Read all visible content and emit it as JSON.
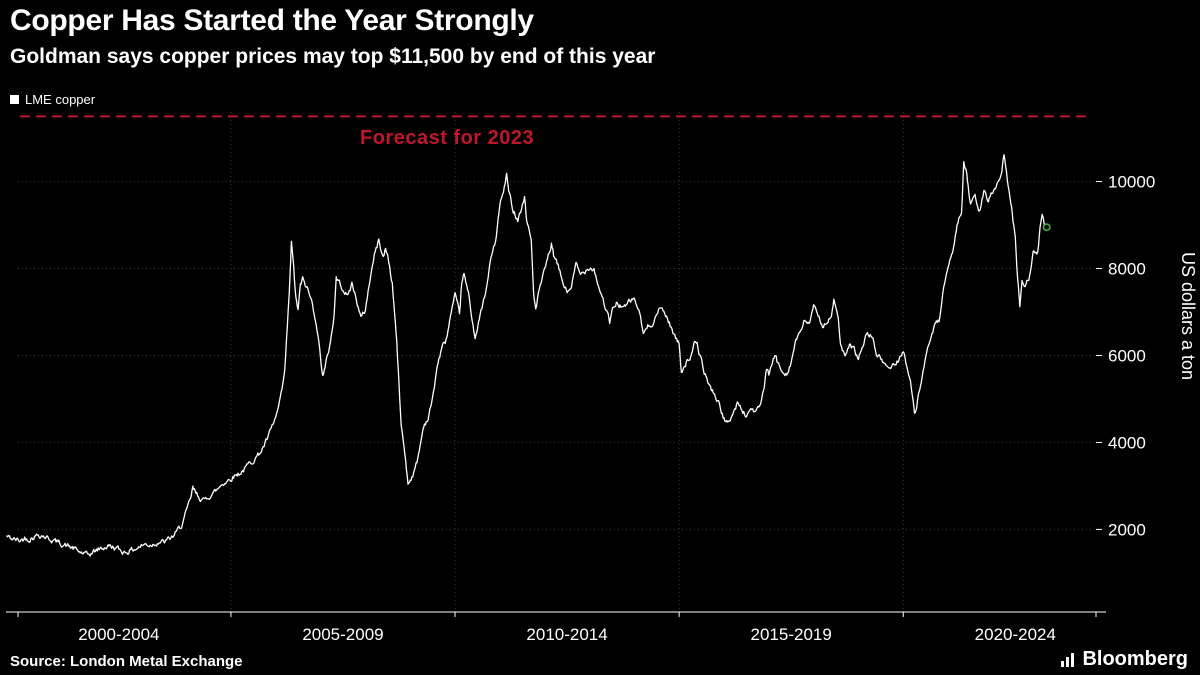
{
  "page": {
    "background": "#000000"
  },
  "header": {
    "title": "Copper Has Started the Year Strongly",
    "subtitle": "Goldman says copper prices may top $11,500 by end of this year"
  },
  "legend": {
    "label": "LME copper",
    "swatch_color": "#ffffff"
  },
  "footer": {
    "source": "Source: London Metal Exchange",
    "brand": "Bloomberg"
  },
  "chart_data": {
    "type": "line",
    "title": "Copper Has Started the Year Strongly",
    "subtitle": "Goldman says copper prices may top $11,500 by end of this year",
    "ylabel": "US dollars a ton",
    "xlabel": "",
    "ylim": [
      100,
      11600
    ],
    "xlim": [
      2000.25,
      2024.3
    ],
    "yticks": [
      2000,
      4000,
      6000,
      8000,
      10000
    ],
    "xtick_labels": [
      "2000-2004",
      "2005-2009",
      "2010-2014",
      "2015-2019",
      "2020-2024"
    ],
    "xtick_centers": [
      2002.5,
      2007.5,
      2012.5,
      2017.5,
      2022.5
    ],
    "x_gridlines": [
      2005,
      2010,
      2015,
      2020
    ],
    "grid_color": "#3a3a3a",
    "axis_color": "#ffffff",
    "forecast": {
      "value": 11500,
      "label": "Forecast for 2023",
      "color": "#c0162c"
    },
    "end_marker": {
      "x": 2023.2,
      "value": 8950,
      "color": "#43b049"
    },
    "noise_amplitude": 110,
    "legend_position": "top-left",
    "series": [
      {
        "name": "LME copper",
        "color": "#ffffff",
        "points": [
          [
            2000.0,
            1840
          ],
          [
            2000.1,
            1790
          ],
          [
            2000.2,
            1760
          ],
          [
            2000.3,
            1740
          ],
          [
            2000.4,
            1800
          ],
          [
            2000.5,
            1780
          ],
          [
            2000.6,
            1830
          ],
          [
            2000.7,
            1880
          ],
          [
            2000.8,
            1860
          ],
          [
            2000.9,
            1810
          ],
          [
            2001.0,
            1760
          ],
          [
            2001.1,
            1720
          ],
          [
            2001.2,
            1680
          ],
          [
            2001.3,
            1640
          ],
          [
            2001.4,
            1600
          ],
          [
            2001.5,
            1560
          ],
          [
            2001.6,
            1490
          ],
          [
            2001.7,
            1450
          ],
          [
            2001.8,
            1400
          ],
          [
            2001.9,
            1460
          ],
          [
            2002.0,
            1520
          ],
          [
            2002.1,
            1560
          ],
          [
            2002.2,
            1590
          ],
          [
            2002.3,
            1620
          ],
          [
            2002.4,
            1580
          ],
          [
            2002.5,
            1540
          ],
          [
            2002.6,
            1480
          ],
          [
            2002.7,
            1500
          ],
          [
            2002.8,
            1530
          ],
          [
            2002.9,
            1570
          ],
          [
            2003.0,
            1620
          ],
          [
            2003.1,
            1660
          ],
          [
            2003.2,
            1640
          ],
          [
            2003.3,
            1680
          ],
          [
            2003.4,
            1720
          ],
          [
            2003.5,
            1700
          ],
          [
            2003.6,
            1760
          ],
          [
            2003.7,
            1830
          ],
          [
            2003.8,
            1950
          ],
          [
            2003.9,
            2100
          ],
          [
            2004.0,
            2380
          ],
          [
            2004.1,
            2700
          ],
          [
            2004.15,
            2950
          ],
          [
            2004.2,
            2850
          ],
          [
            2004.3,
            2740
          ],
          [
            2004.4,
            2650
          ],
          [
            2004.5,
            2760
          ],
          [
            2004.6,
            2830
          ],
          [
            2004.7,
            2920
          ],
          [
            2004.8,
            3050
          ],
          [
            2004.9,
            3100
          ],
          [
            2005.0,
            3180
          ],
          [
            2005.1,
            3250
          ],
          [
            2005.2,
            3300
          ],
          [
            2005.3,
            3380
          ],
          [
            2005.4,
            3500
          ],
          [
            2005.5,
            3600
          ],
          [
            2005.6,
            3700
          ],
          [
            2005.7,
            3850
          ],
          [
            2005.8,
            4050
          ],
          [
            2005.9,
            4300
          ],
          [
            2006.0,
            4560
          ],
          [
            2006.1,
            4950
          ],
          [
            2006.2,
            5600
          ],
          [
            2006.3,
            7400
          ],
          [
            2006.35,
            8590
          ],
          [
            2006.4,
            8000
          ],
          [
            2006.45,
            7300
          ],
          [
            2006.5,
            7050
          ],
          [
            2006.55,
            7600
          ],
          [
            2006.6,
            7750
          ],
          [
            2006.7,
            7550
          ],
          [
            2006.8,
            7250
          ],
          [
            2006.9,
            6800
          ],
          [
            2007.0,
            5950
          ],
          [
            2007.05,
            5550
          ],
          [
            2007.1,
            5700
          ],
          [
            2007.2,
            6200
          ],
          [
            2007.3,
            6900
          ],
          [
            2007.35,
            7800
          ],
          [
            2007.4,
            7700
          ],
          [
            2007.5,
            7550
          ],
          [
            2007.6,
            7350
          ],
          [
            2007.7,
            7650
          ],
          [
            2007.8,
            7300
          ],
          [
            2007.9,
            6850
          ],
          [
            2008.0,
            7050
          ],
          [
            2008.1,
            7750
          ],
          [
            2008.2,
            8300
          ],
          [
            2008.3,
            8650
          ],
          [
            2008.4,
            8250
          ],
          [
            2008.45,
            8450
          ],
          [
            2008.5,
            8300
          ],
          [
            2008.6,
            7650
          ],
          [
            2008.65,
            7000
          ],
          [
            2008.7,
            6300
          ],
          [
            2008.75,
            5300
          ],
          [
            2008.8,
            4400
          ],
          [
            2008.9,
            3600
          ],
          [
            2008.95,
            3050
          ],
          [
            2009.0,
            3150
          ],
          [
            2009.1,
            3350
          ],
          [
            2009.15,
            3550
          ],
          [
            2009.2,
            3800
          ],
          [
            2009.3,
            4400
          ],
          [
            2009.4,
            4550
          ],
          [
            2009.5,
            5000
          ],
          [
            2009.6,
            5750
          ],
          [
            2009.7,
            6150
          ],
          [
            2009.8,
            6350
          ],
          [
            2009.9,
            6900
          ],
          [
            2010.0,
            7350
          ],
          [
            2010.1,
            6950
          ],
          [
            2010.15,
            7700
          ],
          [
            2010.2,
            7850
          ],
          [
            2010.3,
            7400
          ],
          [
            2010.4,
            6700
          ],
          [
            2010.45,
            6450
          ],
          [
            2010.5,
            6600
          ],
          [
            2010.6,
            7100
          ],
          [
            2010.7,
            7500
          ],
          [
            2010.8,
            8250
          ],
          [
            2010.9,
            8600
          ],
          [
            2011.0,
            9450
          ],
          [
            2011.1,
            9850
          ],
          [
            2011.15,
            10160
          ],
          [
            2011.2,
            9750
          ],
          [
            2011.3,
            9350
          ],
          [
            2011.4,
            9150
          ],
          [
            2011.5,
            9450
          ],
          [
            2011.55,
            9650
          ],
          [
            2011.6,
            9100
          ],
          [
            2011.7,
            8650
          ],
          [
            2011.75,
            7500
          ],
          [
            2011.8,
            7050
          ],
          [
            2011.9,
            7600
          ],
          [
            2012.0,
            7950
          ],
          [
            2012.1,
            8350
          ],
          [
            2012.15,
            8550
          ],
          [
            2012.2,
            8300
          ],
          [
            2012.3,
            8050
          ],
          [
            2012.4,
            7700
          ],
          [
            2012.5,
            7450
          ],
          [
            2012.6,
            7600
          ],
          [
            2012.7,
            8100
          ],
          [
            2012.8,
            7850
          ],
          [
            2012.9,
            7950
          ],
          [
            2013.0,
            8050
          ],
          [
            2013.1,
            8000
          ],
          [
            2013.2,
            7600
          ],
          [
            2013.3,
            7300
          ],
          [
            2013.4,
            6950
          ],
          [
            2013.45,
            6750
          ],
          [
            2013.5,
            7000
          ],
          [
            2013.6,
            7200
          ],
          [
            2013.7,
            7150
          ],
          [
            2013.8,
            7100
          ],
          [
            2013.9,
            7250
          ],
          [
            2014.0,
            7300
          ],
          [
            2014.1,
            7050
          ],
          [
            2014.2,
            6500
          ],
          [
            2014.3,
            6650
          ],
          [
            2014.4,
            6750
          ],
          [
            2014.5,
            6950
          ],
          [
            2014.6,
            7100
          ],
          [
            2014.7,
            6950
          ],
          [
            2014.8,
            6700
          ],
          [
            2014.9,
            6450
          ],
          [
            2015.0,
            6250
          ],
          [
            2015.05,
            5650
          ],
          [
            2015.1,
            5750
          ],
          [
            2015.2,
            5900
          ],
          [
            2015.3,
            6050
          ],
          [
            2015.35,
            6300
          ],
          [
            2015.4,
            6250
          ],
          [
            2015.5,
            5850
          ],
          [
            2015.6,
            5500
          ],
          [
            2015.7,
            5250
          ],
          [
            2015.8,
            5100
          ],
          [
            2015.9,
            4850
          ],
          [
            2016.0,
            4550
          ],
          [
            2016.05,
            4400
          ],
          [
            2016.1,
            4500
          ],
          [
            2016.2,
            4650
          ],
          [
            2016.3,
            4900
          ],
          [
            2016.4,
            4750
          ],
          [
            2016.5,
            4600
          ],
          [
            2016.6,
            4800
          ],
          [
            2016.7,
            4700
          ],
          [
            2016.8,
            4800
          ],
          [
            2016.9,
            5300
          ],
          [
            2016.95,
            5650
          ],
          [
            2017.0,
            5550
          ],
          [
            2017.1,
            5900
          ],
          [
            2017.15,
            6000
          ],
          [
            2017.2,
            5800
          ],
          [
            2017.3,
            5650
          ],
          [
            2017.4,
            5600
          ],
          [
            2017.5,
            5850
          ],
          [
            2017.6,
            6350
          ],
          [
            2017.7,
            6500
          ],
          [
            2017.8,
            6800
          ],
          [
            2017.9,
            6750
          ],
          [
            2018.0,
            7100
          ],
          [
            2018.1,
            6900
          ],
          [
            2018.2,
            6700
          ],
          [
            2018.3,
            6800
          ],
          [
            2018.4,
            6850
          ],
          [
            2018.45,
            7250
          ],
          [
            2018.5,
            7150
          ],
          [
            2018.55,
            6800
          ],
          [
            2018.6,
            6250
          ],
          [
            2018.7,
            5950
          ],
          [
            2018.8,
            6200
          ],
          [
            2018.9,
            6150
          ],
          [
            2019.0,
            5900
          ],
          [
            2019.1,
            6250
          ],
          [
            2019.2,
            6500
          ],
          [
            2019.3,
            6450
          ],
          [
            2019.4,
            6050
          ],
          [
            2019.5,
            5900
          ],
          [
            2019.6,
            5800
          ],
          [
            2019.7,
            5700
          ],
          [
            2019.8,
            5800
          ],
          [
            2019.9,
            5900
          ],
          [
            2020.0,
            6150
          ],
          [
            2020.1,
            5650
          ],
          [
            2020.2,
            5150
          ],
          [
            2020.25,
            4650
          ],
          [
            2020.3,
            4850
          ],
          [
            2020.35,
            5200
          ],
          [
            2020.4,
            5350
          ],
          [
            2020.5,
            5900
          ],
          [
            2020.6,
            6400
          ],
          [
            2020.7,
            6650
          ],
          [
            2020.8,
            6800
          ],
          [
            2020.9,
            7500
          ],
          [
            2021.0,
            7950
          ],
          [
            2021.1,
            8400
          ],
          [
            2021.2,
            9000
          ],
          [
            2021.3,
            9350
          ],
          [
            2021.35,
            10400
          ],
          [
            2021.4,
            10250
          ],
          [
            2021.45,
            9900
          ],
          [
            2021.5,
            9450
          ],
          [
            2021.6,
            9650
          ],
          [
            2021.7,
            9300
          ],
          [
            2021.8,
            9750
          ],
          [
            2021.9,
            9550
          ],
          [
            2022.0,
            9800
          ],
          [
            2022.1,
            9950
          ],
          [
            2022.2,
            10300
          ],
          [
            2022.25,
            10600
          ],
          [
            2022.3,
            10250
          ],
          [
            2022.4,
            9500
          ],
          [
            2022.45,
            9100
          ],
          [
            2022.5,
            8700
          ],
          [
            2022.55,
            7800
          ],
          [
            2022.6,
            7150
          ],
          [
            2022.65,
            7750
          ],
          [
            2022.7,
            7600
          ],
          [
            2022.8,
            7800
          ],
          [
            2022.9,
            8350
          ],
          [
            2023.0,
            8350
          ],
          [
            2023.05,
            8900
          ],
          [
            2023.1,
            9250
          ],
          [
            2023.15,
            9000
          ],
          [
            2023.2,
            8950
          ]
        ]
      }
    ]
  }
}
